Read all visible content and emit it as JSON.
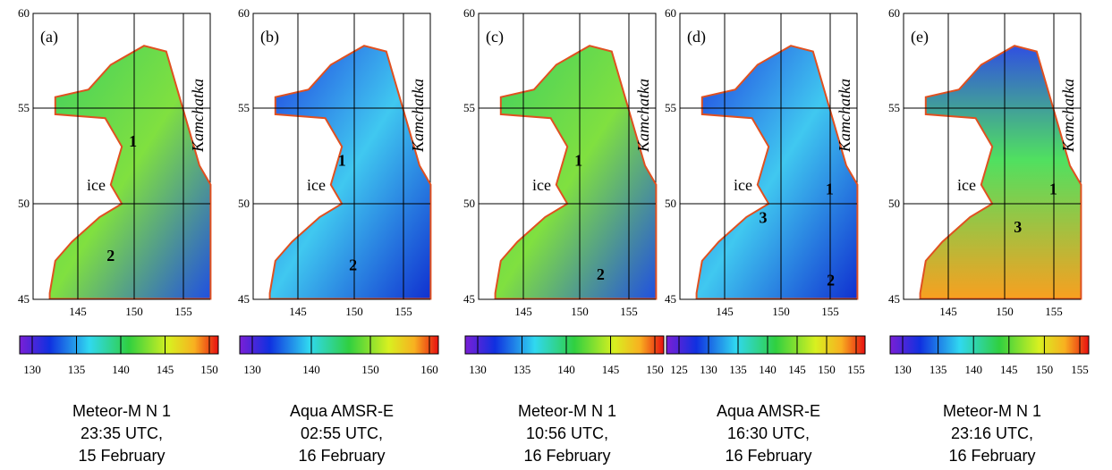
{
  "panels": [
    {
      "label": "(a)",
      "yticks": [
        "60",
        "55",
        "50",
        "45"
      ],
      "xticks": [
        "145",
        "150",
        "155"
      ],
      "land": "Kamchatka",
      "ice": "ice",
      "points": [
        "1",
        "2"
      ],
      "colorbar_ticks": [
        "130",
        "135",
        "140",
        "145",
        "150"
      ],
      "caption": [
        "Meteor-M N 1",
        "23:35 UTC,",
        "15 February"
      ]
    },
    {
      "label": "(b)",
      "yticks": [
        "60",
        "55",
        "50",
        "45"
      ],
      "xticks": [
        "145",
        "150",
        "155"
      ],
      "land": "Kamchatka",
      "ice": "ice",
      "points": [
        "1",
        "2"
      ],
      "colorbar_ticks": [
        "130",
        "140",
        "150",
        "160"
      ],
      "caption": [
        "Aqua AMSR-E",
        "02:55 UTC,",
        "16 February"
      ]
    },
    {
      "label": "(c)",
      "yticks": [
        "60",
        "55",
        "50",
        "45"
      ],
      "xticks": [
        "145",
        "150",
        "155"
      ],
      "land": "Kamchatka",
      "ice": "ice",
      "points": [
        "1",
        "2"
      ],
      "colorbar_ticks": [
        "130",
        "135",
        "140",
        "145",
        "150"
      ],
      "caption": [
        "Meteor-M N 1",
        "10:56 UTC,",
        "16 February"
      ]
    },
    {
      "label": "(d)",
      "yticks": [
        "60",
        "55",
        "50",
        "45"
      ],
      "xticks": [
        "145",
        "150",
        "155"
      ],
      "land": "Kamchatka",
      "ice": "ice",
      "points": [
        "1",
        "2",
        "3"
      ],
      "colorbar_ticks": [
        "125",
        "130",
        "135",
        "140",
        "145",
        "150",
        "155"
      ],
      "caption": [
        "Aqua AMSR-E",
        "16:30 UTC,",
        "16 February"
      ]
    },
    {
      "label": "(e)",
      "yticks": [
        "60",
        "55",
        "50",
        "45"
      ],
      "xticks": [
        "145",
        "150",
        "155"
      ],
      "land": "Kamchatka",
      "ice": "ice",
      "points": [
        "1",
        "3"
      ],
      "colorbar_ticks": [
        "130",
        "135",
        "140",
        "145",
        "150",
        "155"
      ],
      "caption": [
        "Meteor-M N 1",
        "23:16 UTC,",
        "16 February"
      ]
    }
  ]
}
